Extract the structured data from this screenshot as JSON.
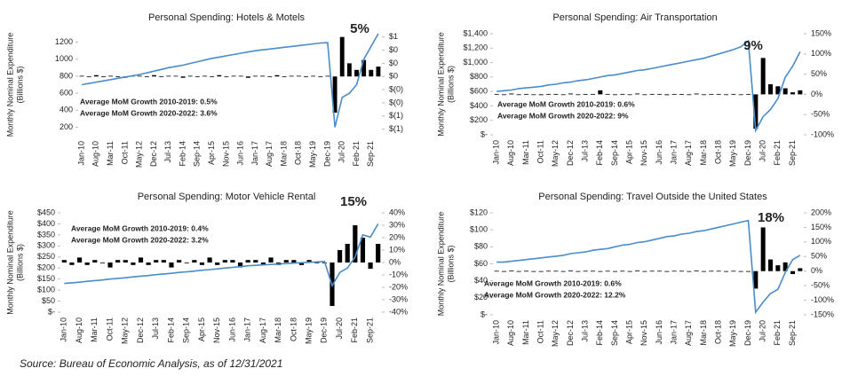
{
  "source": "Source: Bureau of Economic Analysis, as of 12/31/2021",
  "chart_data": [
    {
      "type": "combo",
      "title": "Personal Spending: Hotels & Motels",
      "ylabel": [
        "Monthly Nominal Expenditure",
        "(Billions $)"
      ],
      "annotation": "5%",
      "notes": [
        "Average MoM Growth 2010-2019: 0.5%",
        "Average MoM Growth 2020-2022: 3.6%"
      ],
      "categories": [
        "Jan-10",
        null,
        "Aug-10",
        null,
        "Mar-11",
        null,
        "Oct-11",
        null,
        "May-12",
        null,
        "Dec-12",
        null,
        "Jul-13",
        null,
        "Feb-14",
        null,
        "Sep-14",
        null,
        "Apr-15",
        null,
        "Nov-15",
        null,
        "Jun-16",
        null,
        "Jan-17",
        null,
        "Aug-17",
        null,
        "Mar-18",
        null,
        "Oct-18",
        null,
        "May-19",
        null,
        "Dec-19",
        null,
        "Jul-20",
        null,
        "Feb-21",
        null,
        "Sep-21",
        null
      ],
      "ylim": [
        100,
        1300
      ],
      "yticks": [
        200,
        400,
        600,
        800,
        1000,
        1200
      ],
      "y2lim": [
        -0.9,
        0.65
      ],
      "y2ticks": [
        {
          "value": 0.6,
          "label": "$1"
        },
        {
          "value": 0.4,
          "label": "$0"
        },
        {
          "value": 0.2,
          "label": "$0"
        },
        {
          "value": 0,
          "label": "$0"
        },
        {
          "value": -0.2,
          "label": "$(0)"
        },
        {
          "value": -0.4,
          "label": "$(0)"
        },
        {
          "value": -0.6,
          "label": "$(1)"
        },
        {
          "value": -0.8,
          "label": "$(1)"
        }
      ],
      "series": [
        {
          "type": "bar",
          "axis": "y2",
          "color": "#000000",
          "values": [
            0.01,
            -0.01,
            0.02,
            -0.01,
            0.01,
            0,
            -0.02,
            0.01,
            0.01,
            -0.01,
            0.02,
            -0.01,
            0.01,
            0.01,
            -0.02,
            0.01,
            0,
            0.01,
            -0.01,
            0.02,
            -0.01,
            0.01,
            0.01,
            -0.02,
            0.01,
            0.01,
            -0.01,
            0.02,
            -0.01,
            0.01,
            0.01,
            -0.01,
            0.01,
            0,
            0.01,
            -0.55,
            0.6,
            0.2,
            0.1,
            0.25,
            0.1,
            0.15
          ]
        },
        {
          "type": "line",
          "color": "#4a8bc9",
          "values": [
            700,
            715,
            730,
            745,
            760,
            775,
            790,
            805,
            820,
            840,
            860,
            880,
            900,
            915,
            930,
            950,
            970,
            990,
            1010,
            1025,
            1040,
            1055,
            1070,
            1085,
            1100,
            1110,
            1120,
            1130,
            1140,
            1150,
            1160,
            1170,
            1180,
            1190,
            1195,
            200,
            550,
            600,
            700,
            1000,
            1150,
            1300
          ]
        }
      ]
    },
    {
      "type": "combo",
      "title": "Personal Spending: Air Transportation",
      "ylabel": [
        "Monthly Nominal Expenditure",
        "(Billions $)"
      ],
      "annotation": "9%",
      "notes": [
        "Average MoM Growth 2010-2019: 0.6%",
        "Average MoM Growth 2020-2022: 9%"
      ],
      "categories": [
        "Jan-10",
        null,
        "Aug-10",
        null,
        "Mar-11",
        null,
        "Oct-11",
        null,
        "May-12",
        null,
        "Dec-12",
        null,
        "Jul-13",
        null,
        "Feb-14",
        null,
        "Sep-14",
        null,
        "Apr-15",
        null,
        "Nov-15",
        null,
        "Jun-16",
        null,
        "Jan-17",
        null,
        "Aug-17",
        null,
        "Mar-18",
        null,
        "Oct-18",
        null,
        "May-19",
        null,
        "Dec-19",
        null,
        "Jul-20",
        null,
        "Feb-21",
        null,
        "Sep-21",
        null
      ],
      "ylim": [
        0,
        1400
      ],
      "yticks": [
        {
          "value": 0,
          "label": "$-"
        },
        {
          "value": 200,
          "label": "$200"
        },
        {
          "value": 400,
          "label": "$400"
        },
        {
          "value": 600,
          "label": "$600"
        },
        {
          "value": 800,
          "label": "$800"
        },
        {
          "value": 1000,
          "label": "$1,000"
        },
        {
          "value": 1200,
          "label": "$1,200"
        },
        {
          "value": 1400,
          "label": "$1,400"
        }
      ],
      "y2lim": [
        -100,
        150
      ],
      "y2ticks": [
        {
          "value": 150,
          "label": "150%"
        },
        {
          "value": 100,
          "label": "100%"
        },
        {
          "value": 50,
          "label": "50%"
        },
        {
          "value": 0,
          "label": "0%"
        },
        {
          "value": -50,
          "label": "-50%"
        },
        {
          "value": -100,
          "label": "-100%"
        }
      ],
      "series": [
        {
          "type": "bar",
          "axis": "y2",
          "color": "#000000",
          "values": [
            1,
            -1,
            2,
            -1,
            1,
            0,
            -2,
            1,
            1,
            -1,
            2,
            -1,
            1,
            1,
            10,
            1,
            0,
            1,
            -1,
            2,
            -1,
            1,
            1,
            -2,
            1,
            1,
            -1,
            2,
            -1,
            1,
            1,
            -1,
            1,
            0,
            1,
            -85,
            90,
            25,
            20,
            15,
            5,
            10
          ]
        },
        {
          "type": "line",
          "color": "#4a8bc9",
          "values": [
            600,
            610,
            620,
            640,
            650,
            660,
            670,
            690,
            700,
            720,
            730,
            750,
            760,
            780,
            800,
            820,
            830,
            850,
            870,
            890,
            900,
            920,
            940,
            960,
            980,
            1000,
            1020,
            1040,
            1060,
            1090,
            1120,
            1150,
            1180,
            1220,
            1300,
            60,
            250,
            350,
            500,
            800,
            950,
            1150
          ]
        }
      ]
    },
    {
      "type": "combo",
      "title": "Personal Spending: Motor Vehicle Rental",
      "ylabel": [
        "Monthly Nominal Expenditure",
        "(Billions $)"
      ],
      "annotation": "15%",
      "notes": [
        "Average MoM Growth 2010-2019: 0.4%",
        "Average MoM Growth 2020-2022: 3.2%"
      ],
      "categories": [
        "Jan-10",
        null,
        "Aug-10",
        null,
        "Mar-11",
        null,
        "Oct-11",
        null,
        "May-12",
        null,
        "Dec-12",
        null,
        "Jul-13",
        null,
        "Feb-14",
        null,
        "Sep-14",
        null,
        "Apr-15",
        null,
        "Nov-15",
        null,
        "Jun-16",
        null,
        "Jan-17",
        null,
        "Aug-17",
        null,
        "Mar-18",
        null,
        "Oct-18",
        null,
        "May-19",
        null,
        "Dec-19",
        null,
        "Jul-20",
        null,
        "Feb-21",
        null,
        "Sep-21",
        null
      ],
      "ylim": [
        0,
        450
      ],
      "yticks": [
        {
          "value": 0,
          "label": "$-"
        },
        {
          "value": 50,
          "label": "$50"
        },
        {
          "value": 100,
          "label": "$100"
        },
        {
          "value": 150,
          "label": "$150"
        },
        {
          "value": 200,
          "label": "$200"
        },
        {
          "value": 250,
          "label": "$250"
        },
        {
          "value": 300,
          "label": "$300"
        },
        {
          "value": 350,
          "label": "$350"
        },
        {
          "value": 400,
          "label": "$400"
        },
        {
          "value": 450,
          "label": "$450"
        }
      ],
      "y2lim": [
        -40,
        40
      ],
      "y2ticks": [
        {
          "value": 40,
          "label": "40%"
        },
        {
          "value": 30,
          "label": "30%"
        },
        {
          "value": 20,
          "label": "20%"
        },
        {
          "value": 10,
          "label": "10%"
        },
        {
          "value": 0,
          "label": "0%"
        },
        {
          "value": -10,
          "label": "-10%"
        },
        {
          "value": -20,
          "label": "-20%"
        },
        {
          "value": -30,
          "label": "-30%"
        },
        {
          "value": -40,
          "label": "-40%"
        }
      ],
      "series": [
        {
          "type": "bar",
          "axis": "y2",
          "color": "#000000",
          "values": [
            2,
            -2,
            4,
            -2,
            2,
            0,
            -4,
            2,
            2,
            -2,
            4,
            -2,
            2,
            2,
            -4,
            2,
            0,
            2,
            -2,
            4,
            -2,
            2,
            2,
            -4,
            2,
            2,
            -2,
            4,
            -2,
            2,
            2,
            -2,
            2,
            0,
            0,
            -35,
            10,
            15,
            30,
            20,
            -5,
            15
          ]
        },
        {
          "type": "line",
          "color": "#4a8bc9",
          "values": [
            130,
            133,
            136,
            140,
            143,
            146,
            150,
            153,
            156,
            160,
            163,
            166,
            170,
            173,
            176,
            180,
            183,
            186,
            190,
            193,
            196,
            200,
            203,
            206,
            210,
            212,
            214,
            216,
            218,
            220,
            222,
            224,
            226,
            228,
            230,
            120,
            180,
            200,
            250,
            350,
            340,
            400
          ]
        }
      ]
    },
    {
      "type": "combo",
      "title": "Personal Spending: Travel Outside the United States",
      "ylabel": [
        "Monthly Nominal Expenditure",
        "(Billions $)"
      ],
      "annotation": "18%",
      "notes": [
        "Average MoM Growth 2010-2019: 0.6%",
        "Average MoM Growth 2020-2022: 12.2%"
      ],
      "categories": [
        "Jan-10",
        null,
        "Aug-10",
        null,
        "Mar-11",
        null,
        "Oct-11",
        null,
        "May-12",
        null,
        "Dec-12",
        null,
        "Jul-13",
        null,
        "Feb-14",
        null,
        "Sep-14",
        null,
        "Apr-15",
        null,
        "Nov-15",
        null,
        "Jun-16",
        null,
        "Jan-17",
        null,
        "Aug-17",
        null,
        "Mar-18",
        null,
        "Oct-18",
        null,
        "May-19",
        null,
        "Dec-19",
        null,
        "Jul-20",
        null,
        "Feb-21",
        null,
        "Sep-21",
        null
      ],
      "ylim": [
        0,
        120
      ],
      "yticks": [
        {
          "value": 0,
          "label": "$-"
        },
        {
          "value": 20,
          "label": "$20"
        },
        {
          "value": 40,
          "label": "$40"
        },
        {
          "value": 60,
          "label": "$60"
        },
        {
          "value": 80,
          "label": "$80"
        },
        {
          "value": 100,
          "label": "$100"
        },
        {
          "value": 120,
          "label": "$120"
        }
      ],
      "y2lim": [
        -150,
        200
      ],
      "y2ticks": [
        {
          "value": 200,
          "label": "200%"
        },
        {
          "value": 150,
          "label": "150%"
        },
        {
          "value": 100,
          "label": "100%"
        },
        {
          "value": 50,
          "label": "50%"
        },
        {
          "value": 0,
          "label": "0%"
        },
        {
          "value": -50,
          "label": "-50%"
        },
        {
          "value": -100,
          "label": "-100%"
        },
        {
          "value": -150,
          "label": "-150%"
        }
      ],
      "series": [
        {
          "type": "bar",
          "axis": "y2",
          "color": "#000000",
          "values": [
            1,
            -1,
            2,
            -1,
            1,
            0,
            -2,
            1,
            1,
            -1,
            2,
            -1,
            1,
            1,
            -2,
            1,
            0,
            1,
            -1,
            2,
            -1,
            1,
            1,
            -2,
            1,
            1,
            -1,
            2,
            -1,
            1,
            1,
            -1,
            1,
            0,
            0,
            -60,
            150,
            40,
            20,
            30,
            -10,
            10
          ]
        },
        {
          "type": "line",
          "color": "#4a8bc9",
          "values": [
            62,
            62,
            63,
            64,
            65,
            66,
            67,
            68,
            69,
            70,
            72,
            73,
            74,
            76,
            77,
            78,
            80,
            82,
            83,
            85,
            86,
            88,
            90,
            92,
            93,
            95,
            96,
            98,
            99,
            101,
            103,
            105,
            107,
            109,
            111,
            3,
            15,
            25,
            30,
            50,
            65,
            70
          ]
        }
      ]
    }
  ]
}
